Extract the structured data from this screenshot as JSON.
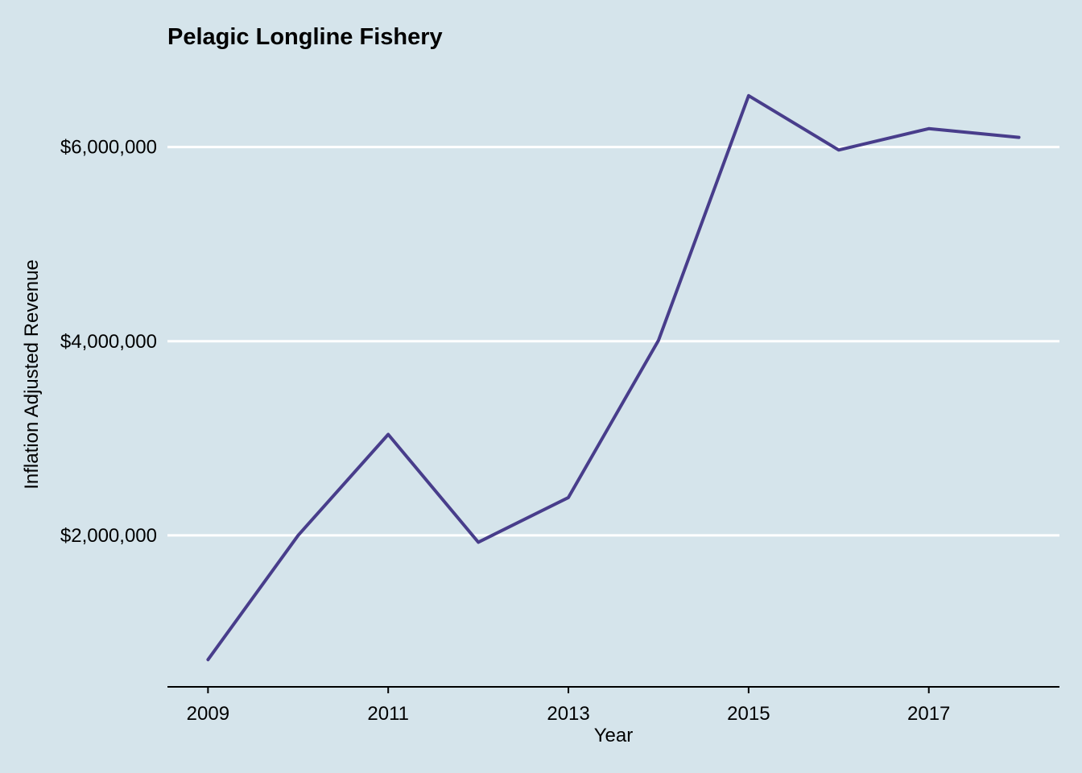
{
  "chart_data": {
    "type": "line",
    "title": "Pelagic Longline Fishery",
    "xlabel": "Year",
    "ylabel": "Inflation Adjusted Revenue",
    "x": [
      2009,
      2010,
      2011,
      2012,
      2013,
      2014,
      2015,
      2016,
      2017,
      2018
    ],
    "series": [
      {
        "name": "Pelagic Longline Fishery",
        "values": [
          720000,
          2000000,
          3040000,
          1930000,
          2390000,
          4010000,
          6530000,
          5970000,
          6190000,
          6100000
        ]
      }
    ],
    "xticks": [
      2009,
      2011,
      2013,
      2015,
      2017
    ],
    "xtick_labels": [
      "2009",
      "2011",
      "2013",
      "2015",
      "2017"
    ],
    "yticks": [
      2000000,
      4000000,
      6000000
    ],
    "ytick_labels": [
      "$2,000,000",
      "$4,000,000",
      "$6,000,000"
    ],
    "xlim": [
      2008.55,
      2018.45
    ],
    "ylim": [
      440000,
      6810000
    ],
    "grid": "horizontal-major",
    "legend": "none",
    "colors": {
      "background": "#d5e4eb",
      "line": "#483d8b",
      "grid": "#ffffff",
      "axis": "#000000"
    }
  }
}
